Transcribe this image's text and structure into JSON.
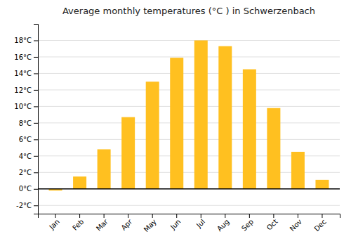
{
  "chart_data": {
    "type": "bar",
    "title": "Average monthly temperatures (°C ) in Schwerzenbach",
    "categories": [
      "Jan",
      "Feb",
      "Mar",
      "Apr",
      "May",
      "Jun",
      "Jul",
      "Aug",
      "Sep",
      "Oct",
      "Nov",
      "Dec"
    ],
    "values": [
      -0.2,
      1.5,
      4.8,
      8.7,
      13.0,
      15.9,
      18.0,
      17.3,
      14.5,
      9.8,
      4.5,
      1.1
    ],
    "color": "#FFC020",
    "ylim": [
      -3,
      20
    ],
    "yticks": [
      {
        "value": -2,
        "label": "-2°C"
      },
      {
        "value": 0,
        "label": "0°C"
      },
      {
        "value": 2,
        "label": "2°C"
      },
      {
        "value": 4,
        "label": "4°C"
      },
      {
        "value": 6,
        "label": "6°C"
      },
      {
        "value": 8,
        "label": "8°C"
      },
      {
        "value": 10,
        "label": "10°C"
      },
      {
        "value": 12,
        "label": "12°C"
      },
      {
        "value": 14,
        "label": "14°C"
      },
      {
        "value": 16,
        "label": "16°C"
      },
      {
        "value": 18,
        "label": "18°C"
      }
    ],
    "grid": true
  }
}
